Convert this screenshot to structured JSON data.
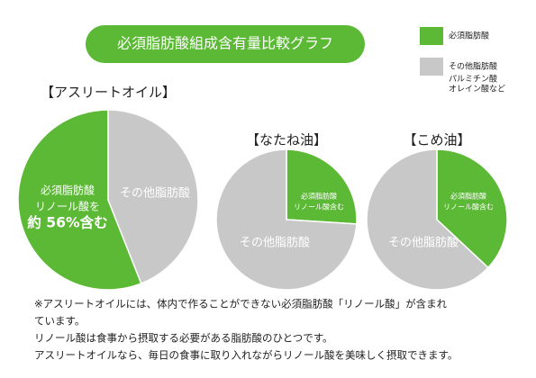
{
  "title": "必須脂肪酸組成含有量比較グラフ",
  "legend": {
    "items": [
      {
        "name": "必須脂肪酸",
        "color": "#5cb936"
      },
      {
        "name": "その他脂肪酸",
        "color": "#c8c8c8",
        "note": [
          "パルミチン酸",
          "オレイン酸など"
        ]
      }
    ]
  },
  "chart_data": [
    {
      "type": "pie",
      "title": "【アスリートオイル】",
      "categories": [
        "必須脂肪酸",
        "その他脂肪酸"
      ],
      "values": [
        56,
        44
      ],
      "colors": [
        "#5cb936",
        "#c8c8c8"
      ],
      "direction": "counterclockwise",
      "annotations": [
        "リノール酸を",
        "約 56%含む"
      ]
    },
    {
      "type": "pie",
      "title": "【なたね油】",
      "categories": [
        "必須脂肪酸",
        "その他脂肪酸"
      ],
      "values": [
        26,
        74
      ],
      "colors": [
        "#5cb936",
        "#c8c8c8"
      ],
      "direction": "clockwise",
      "annotations": [
        "リノール酸含む"
      ]
    },
    {
      "type": "pie",
      "title": "【こめ油】",
      "categories": [
        "必須脂肪酸",
        "その他脂肪酸"
      ],
      "values": [
        37,
        63
      ],
      "colors": [
        "#5cb936",
        "#c8c8c8"
      ],
      "direction": "clockwise",
      "annotations": [
        "リノール酸含む"
      ]
    }
  ],
  "footnote": [
    "※アスリートオイルには、体内で作ることができない必須脂肪酸「リノール酸」が含まれ",
    "ています。",
    "リノール酸は食事から摂取する必要がある脂肪酸のひとつです。",
    "アスリートオイルなら、毎日の食事に取り入れながらリノール酸を美味しく摂取できます。"
  ]
}
